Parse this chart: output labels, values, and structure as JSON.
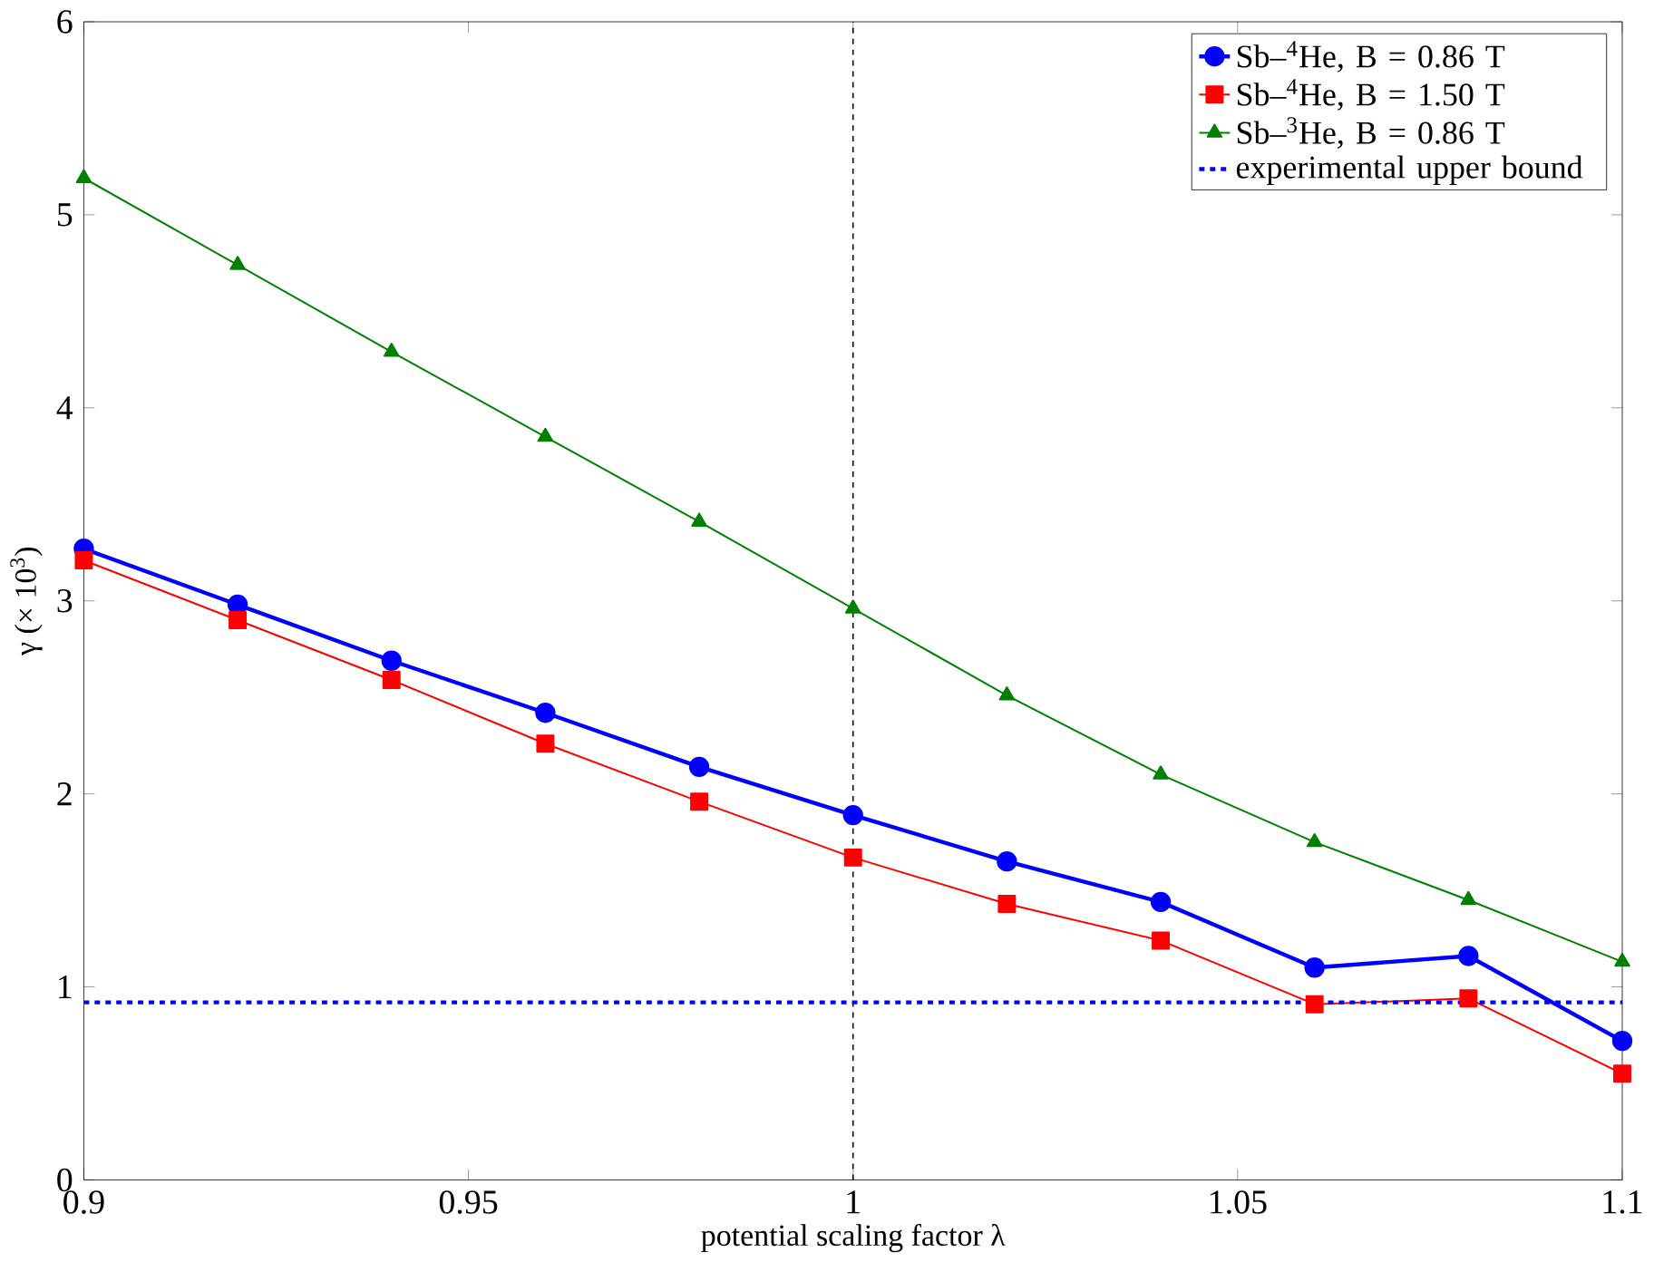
{
  "chart_data": {
    "type": "line",
    "xlabel": "potential scaling factor λ",
    "ylabel": "γ (× 10$^{3}$)",
    "x": [
      0.9,
      0.92,
      0.94,
      0.96,
      0.98,
      1.0,
      1.02,
      1.04,
      1.06,
      1.08,
      1.1
    ],
    "series": [
      {
        "name": "Sb–$^{4}$He, B = 0.86 T",
        "color": "#0000ff",
        "marker": "circle",
        "values": [
          3.27,
          2.98,
          2.69,
          2.42,
          2.14,
          1.89,
          1.65,
          1.44,
          1.1,
          1.16,
          0.72
        ]
      },
      {
        "name": "Sb–$^{4}$He, B = 1.50 T",
        "color": "#ff0000",
        "marker": "square",
        "values": [
          3.21,
          2.9,
          2.59,
          2.26,
          1.96,
          1.67,
          1.43,
          1.24,
          0.91,
          0.94,
          0.55
        ]
      },
      {
        "name": "Sb–$^{3}$He, B = 0.86 T",
        "color": "#008000",
        "marker": "triangle",
        "values": [
          5.19,
          4.74,
          4.29,
          3.85,
          3.41,
          2.96,
          2.51,
          2.1,
          1.75,
          1.45,
          1.13
        ]
      }
    ],
    "ref_lines": [
      {
        "axis": "x",
        "value": 1,
        "color": "#000000",
        "line_style": "dashed"
      },
      {
        "axis": "y",
        "value": 0.92,
        "label": "experimental upper bound",
        "color": "#0000ff",
        "line_style": "dashed"
      }
    ],
    "xlim": [
      0.9,
      1.1
    ],
    "ylim": [
      0,
      6
    ],
    "xticks": [
      0.9,
      0.95,
      1,
      1.05,
      1.1
    ],
    "yticks": [
      0,
      1,
      2,
      3,
      4,
      5,
      6
    ],
    "grid": false,
    "legend": "top right"
  }
}
